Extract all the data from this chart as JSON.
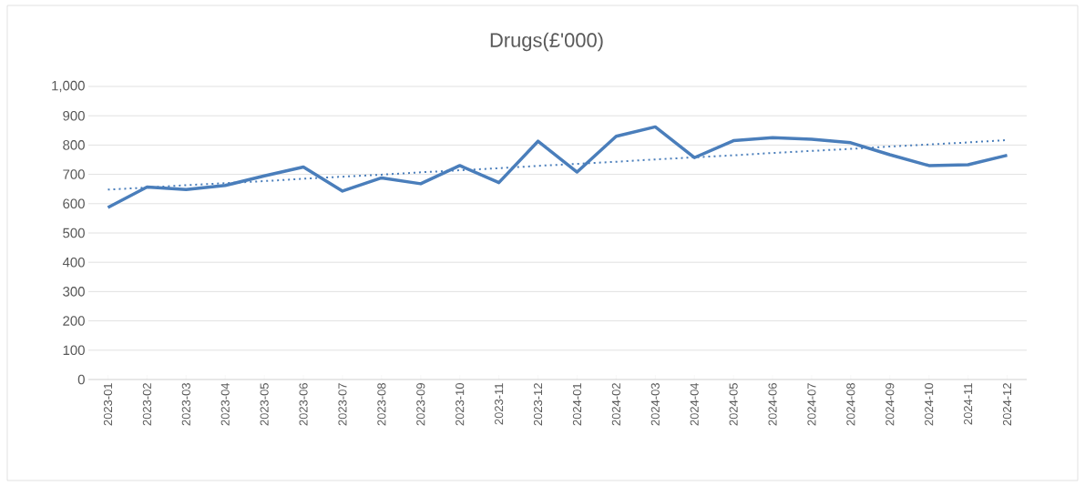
{
  "chart_data": {
    "type": "line",
    "title": "Drugs(£'000)",
    "categories": [
      "2023-01",
      "2023-02",
      "2023-03",
      "2023-04",
      "2023-05",
      "2023-06",
      "2023-07",
      "2023-08",
      "2023-09",
      "2023-10",
      "2023-11",
      "2023-12",
      "2024-01",
      "2024-02",
      "2024-03",
      "2024-04",
      "2024-05",
      "2024-06",
      "2024-07",
      "2024-08",
      "2024-09",
      "2024-10",
      "2024-11",
      "2024-12"
    ],
    "series": [
      {
        "color": "#4a7ebb",
        "line_style": "solid",
        "values": [
          587,
          657,
          648,
          662,
          695,
          725,
          643,
          688,
          668,
          730,
          672,
          813,
          708,
          830,
          862,
          757,
          815,
          825,
          820,
          808,
          767,
          730,
          733,
          765
        ]
      },
      {
        "type": "line",
        "color": "#4a7ebb",
        "line_style": "dotted",
        "values": [
          648,
          655,
          663,
          670,
          677,
          685,
          692,
          699,
          707,
          714,
          721,
          729,
          736,
          743,
          751,
          758,
          765,
          773,
          780,
          787,
          795,
          802,
          809,
          817
        ]
      }
    ],
    "ylim": [
      0,
      1000
    ],
    "yticks": [
      0,
      100,
      200,
      300,
      400,
      500,
      600,
      700,
      800,
      900,
      {
        "value": 1000,
        "label": "1,000"
      }
    ],
    "grid": "y",
    "marker": "none"
  }
}
